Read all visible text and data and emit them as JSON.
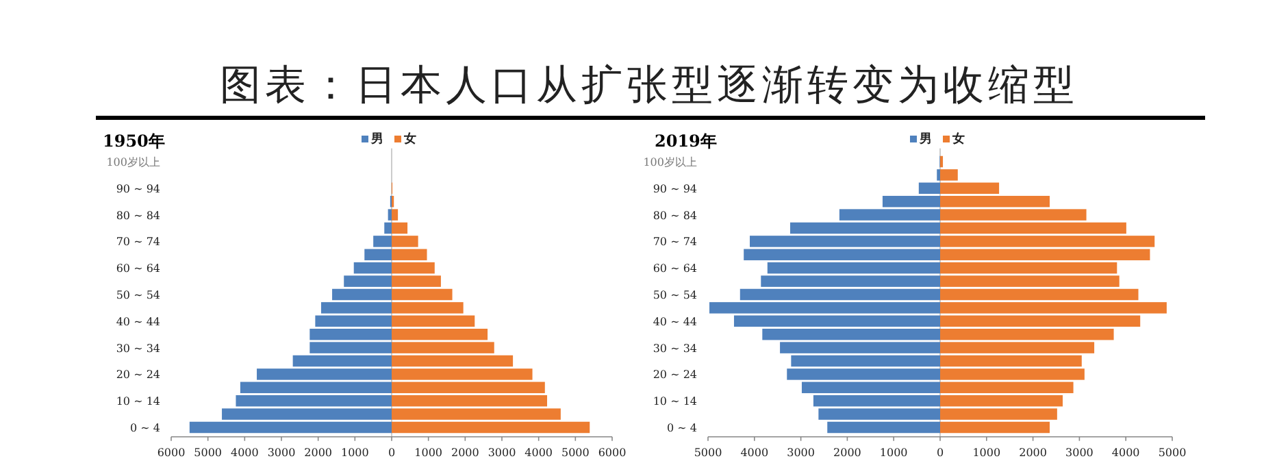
{
  "chart_data": [
    {
      "type": "bar",
      "orientation": "horizontal",
      "stacked": true,
      "title": "图表：日本人口从扩张型逐渐转变为收缩型",
      "subtitle": "1950年",
      "legend": "top",
      "categories": [
        "100岁以上",
        null,
        "90 ~ 94",
        null,
        "80 ~ 84",
        null,
        "70 ~ 74",
        null,
        "60 ~ 64",
        null,
        "50 ~ 54",
        null,
        "40 ~ 44",
        null,
        "30 ~ 34",
        null,
        "20 ~ 24",
        null,
        "10 ~ 14",
        null,
        "0 ~ 4"
      ],
      "xlim": [
        -6000,
        6000
      ],
      "xticks": [
        {
          "value": -6000,
          "label": "6000"
        },
        {
          "value": -5000,
          "label": "5000"
        },
        {
          "value": -4000,
          "label": "4000"
        },
        {
          "value": -3000,
          "label": "3000"
        },
        {
          "value": -2000,
          "label": "2000"
        },
        {
          "value": -1000,
          "label": "1000"
        },
        0,
        1000,
        2000,
        3000,
        4000,
        5000,
        6000
      ],
      "series": [
        {
          "name": "男",
          "color": "#4f81bd",
          "values": [
            0,
            0,
            0,
            -40,
            -100,
            -200,
            -500,
            -740,
            -1030,
            -1300,
            -1620,
            -1920,
            -2080,
            -2230,
            -2230,
            -2690,
            -3670,
            -4120,
            -4240,
            -4620,
            -5500
          ]
        },
        {
          "name": "女",
          "color": "#ed7d31",
          "values": [
            0,
            0,
            20,
            60,
            170,
            430,
            720,
            960,
            1170,
            1340,
            1650,
            1950,
            2260,
            2610,
            2790,
            3300,
            3830,
            4170,
            4230,
            4600,
            5390
          ]
        }
      ]
    },
    {
      "type": "bar",
      "orientation": "horizontal",
      "stacked": true,
      "subtitle": "2019年",
      "legend": "top",
      "categories": [
        "100岁以上",
        null,
        "90 ~ 94",
        null,
        "80 ~ 84",
        null,
        "70 ~ 74",
        null,
        "60 ~ 64",
        null,
        "50 ~ 54",
        null,
        "40 ~ 44",
        null,
        "30 ~ 34",
        null,
        "20 ~ 24",
        null,
        "10 ~ 14",
        null,
        "0 ~ 4"
      ],
      "xlim": [
        -5000,
        5000
      ],
      "xticks": [
        {
          "value": -5000,
          "label": "5000"
        },
        {
          "value": -4000,
          "label": "4000"
        },
        {
          "value": -3000,
          "label": "3000"
        },
        {
          "value": -2000,
          "label": "2000"
        },
        {
          "value": -1000,
          "label": "1000"
        },
        0,
        1000,
        2000,
        3000,
        4000,
        5000
      ],
      "series": [
        {
          "name": "男",
          "color": "#4f81bd",
          "values": [
            -10,
            -70,
            -460,
            -1240,
            -2170,
            -3230,
            -4100,
            -4230,
            -3720,
            -3860,
            -4310,
            -4970,
            -4440,
            -3830,
            -3450,
            -3210,
            -3300,
            -2980,
            -2730,
            -2620,
            -2430
          ]
        },
        {
          "name": "女",
          "color": "#ed7d31",
          "values": [
            60,
            380,
            1270,
            2360,
            3150,
            4010,
            4620,
            4520,
            3810,
            3860,
            4270,
            4880,
            4310,
            3740,
            3320,
            3050,
            3110,
            2870,
            2640,
            2520,
            2360
          ]
        }
      ]
    }
  ]
}
